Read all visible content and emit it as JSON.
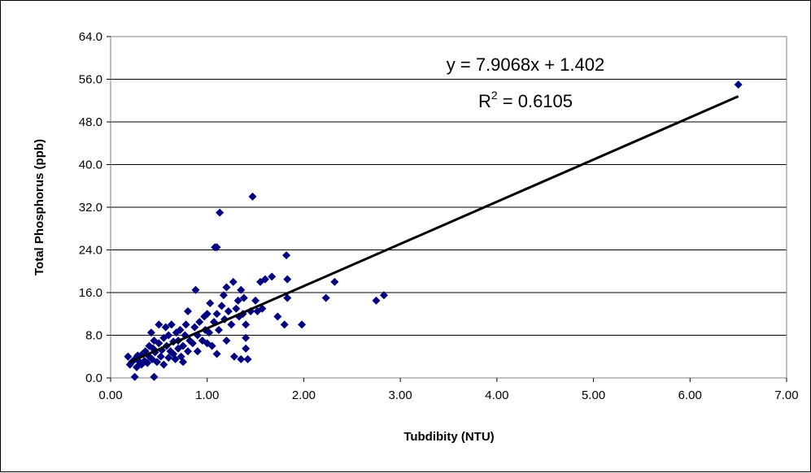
{
  "chart_data": {
    "type": "scatter",
    "xlabel": "Tubdibity (NTU)",
    "ylabel": "Total Phosphorus (ppb)",
    "xlim": [
      0,
      7
    ],
    "ylim": [
      0,
      64
    ],
    "x_ticks": [
      "0.00",
      "1.00",
      "2.00",
      "3.00",
      "4.00",
      "5.00",
      "6.00",
      "7.00"
    ],
    "y_ticks": [
      "0.0",
      "8.0",
      "16.0",
      "24.0",
      "32.0",
      "40.0",
      "48.0",
      "56.0",
      "64.0"
    ],
    "grid": "horizontal",
    "legend": "none",
    "marker": "diamond",
    "marker_color": "#000080",
    "trendline": {
      "type": "linear",
      "slope": 7.9068,
      "intercept": 1.402,
      "x_range": [
        0.2,
        6.5
      ],
      "color": "#000000",
      "equation_text": "y = 7.9068x + 1.402",
      "r2_prefix": "R",
      "r2_exponent": "2",
      "r2_suffix": " = 0.6105"
    },
    "points": [
      [
        0.18,
        4.0
      ],
      [
        0.2,
        2.5
      ],
      [
        0.22,
        3.0
      ],
      [
        0.25,
        0.2
      ],
      [
        0.25,
        3.5
      ],
      [
        0.27,
        2.0
      ],
      [
        0.28,
        4.2
      ],
      [
        0.3,
        3.0
      ],
      [
        0.32,
        2.5
      ],
      [
        0.33,
        4.5
      ],
      [
        0.35,
        3.2
      ],
      [
        0.36,
        5.0
      ],
      [
        0.38,
        2.8
      ],
      [
        0.4,
        4.0
      ],
      [
        0.4,
        6.0
      ],
      [
        0.42,
        8.5
      ],
      [
        0.43,
        3.5
      ],
      [
        0.44,
        5.5
      ],
      [
        0.45,
        0.2
      ],
      [
        0.45,
        7.0
      ],
      [
        0.46,
        4.8
      ],
      [
        0.48,
        3.0
      ],
      [
        0.5,
        6.5
      ],
      [
        0.5,
        10.0
      ],
      [
        0.52,
        4.0
      ],
      [
        0.53,
        5.2
      ],
      [
        0.55,
        7.5
      ],
      [
        0.55,
        2.5
      ],
      [
        0.57,
        9.5
      ],
      [
        0.58,
        6.0
      ],
      [
        0.6,
        3.8
      ],
      [
        0.6,
        8.0
      ],
      [
        0.62,
        5.0
      ],
      [
        0.63,
        10.0
      ],
      [
        0.65,
        4.5
      ],
      [
        0.65,
        6.8
      ],
      [
        0.67,
        3.5
      ],
      [
        0.68,
        8.5
      ],
      [
        0.7,
        5.5
      ],
      [
        0.7,
        7.0
      ],
      [
        0.72,
        9.0
      ],
      [
        0.73,
        4.0
      ],
      [
        0.75,
        6.0
      ],
      [
        0.75,
        3.0
      ],
      [
        0.77,
        8.0
      ],
      [
        0.78,
        10.0
      ],
      [
        0.8,
        5.0
      ],
      [
        0.8,
        12.5
      ],
      [
        0.82,
        7.0
      ],
      [
        0.85,
        6.5
      ],
      [
        0.87,
        9.5
      ],
      [
        0.88,
        16.5
      ],
      [
        0.9,
        8.0
      ],
      [
        0.9,
        5.0
      ],
      [
        0.92,
        10.5
      ],
      [
        0.95,
        7.0
      ],
      [
        0.97,
        11.5
      ],
      [
        0.98,
        9.0
      ],
      [
        1.0,
        6.5
      ],
      [
        1.0,
        12.0
      ],
      [
        1.02,
        8.5
      ],
      [
        1.03,
        14.0
      ],
      [
        1.05,
        6.0
      ],
      [
        1.07,
        10.5
      ],
      [
        1.08,
        24.5
      ],
      [
        1.1,
        24.5
      ],
      [
        1.1,
        4.5
      ],
      [
        1.1,
        12.0
      ],
      [
        1.12,
        9.0
      ],
      [
        1.13,
        31.0
      ],
      [
        1.15,
        13.5
      ],
      [
        1.17,
        15.5
      ],
      [
        1.18,
        11.0
      ],
      [
        1.2,
        17.0
      ],
      [
        1.2,
        7.0
      ],
      [
        1.22,
        12.5
      ],
      [
        1.25,
        10.0
      ],
      [
        1.27,
        18.0
      ],
      [
        1.28,
        4.0
      ],
      [
        1.3,
        13.0
      ],
      [
        1.32,
        14.5
      ],
      [
        1.33,
        11.5
      ],
      [
        1.35,
        16.5
      ],
      [
        1.35,
        3.5
      ],
      [
        1.37,
        12.0
      ],
      [
        1.38,
        15.0
      ],
      [
        1.4,
        10.0
      ],
      [
        1.4,
        7.5
      ],
      [
        1.4,
        5.5
      ],
      [
        1.42,
        3.5
      ],
      [
        1.45,
        12.5
      ],
      [
        1.47,
        34.0
      ],
      [
        1.5,
        14.5
      ],
      [
        1.52,
        12.5
      ],
      [
        1.55,
        18.0
      ],
      [
        1.57,
        13.0
      ],
      [
        1.6,
        18.5
      ],
      [
        1.67,
        19.0
      ],
      [
        1.73,
        11.5
      ],
      [
        1.8,
        10.0
      ],
      [
        1.82,
        23.0
      ],
      [
        1.83,
        18.5
      ],
      [
        1.83,
        15.0
      ],
      [
        1.98,
        10.0
      ],
      [
        2.23,
        15.0
      ],
      [
        2.32,
        18.0
      ],
      [
        2.75,
        14.5
      ],
      [
        2.83,
        15.5
      ],
      [
        6.5,
        55.0
      ]
    ]
  }
}
